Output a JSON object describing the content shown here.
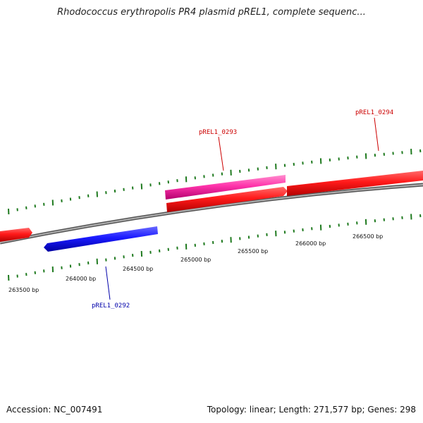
{
  "title": "Rhodococcus erythropolis PR4 plasmid pREL1, complete sequenc...",
  "footer": {
    "accession": "Accession: NC_007491",
    "summary": "Topology: linear; Length: 271,577 bp; Genes: 298"
  },
  "colors": {
    "backbone": "#8c8c8c",
    "tick": "#1f7a1f",
    "forward_gene": "#ff1a1a",
    "reverse_gene": "#1a1aff",
    "highlight_gene": "#ff33aa",
    "forward_label": "#cc0000",
    "reverse_label": "#0000aa"
  },
  "scale_labels": [
    "263500 bp",
    "264000 bp",
    "264500 bp",
    "265000 bp",
    "265500 bp",
    "266000 bp",
    "266500 bp"
  ],
  "genes": [
    {
      "name": "pREL1_0292",
      "strand": "reverse",
      "color": "blue"
    },
    {
      "name": "pREL1_0293",
      "strand": "forward",
      "color": "pink"
    },
    {
      "name": "pREL1_0294",
      "strand": "forward",
      "color": "red"
    }
  ]
}
